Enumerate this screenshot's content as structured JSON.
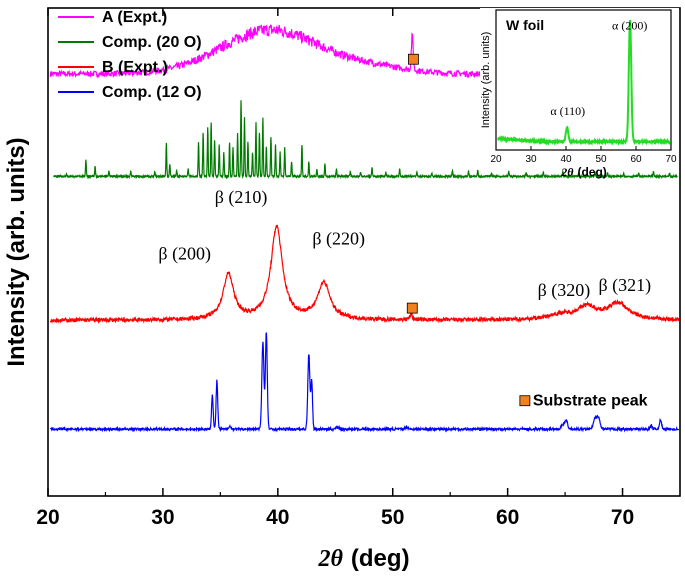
{
  "chart_data": [
    {
      "type": "line",
      "title": "",
      "xlabel_italic": "2θ",
      "xlabel_unit": "(deg)",
      "ylabel": "Intensity (arb. units)",
      "xlim": [
        20,
        75
      ],
      "x_ticks": [
        "20",
        "30",
        "40",
        "50",
        "60",
        "70"
      ],
      "x_tick_values": [
        20,
        30,
        40,
        50,
        60,
        70
      ],
      "y_ticks_labeled": false,
      "legend": {
        "position": "top-left"
      },
      "series": [
        {
          "name": "A (Expt.)",
          "color": "#ff00ff",
          "kind": "broad",
          "baseline": 0.865,
          "amorphous_center": 39.4,
          "amorphous_width": 4.3,
          "amorphous_height": 0.09,
          "noise": 0.006,
          "peaks": [
            {
              "x": 51.7,
              "h": 0.07,
              "w": 0.08
            }
          ]
        },
        {
          "name": "Comp. (20 O)",
          "color": "#007a00",
          "kind": "sticks",
          "baseline": 0.655,
          "peaks": [
            {
              "x": 21.6,
              "h": 0.005
            },
            {
              "x": 23.3,
              "h": 0.035
            },
            {
              "x": 24.1,
              "h": 0.02
            },
            {
              "x": 25.3,
              "h": 0.01
            },
            {
              "x": 27.2,
              "h": 0.01
            },
            {
              "x": 29.3,
              "h": 0.01
            },
            {
              "x": 30.3,
              "h": 0.068
            },
            {
              "x": 30.6,
              "h": 0.025
            },
            {
              "x": 31.2,
              "h": 0.012
            },
            {
              "x": 32.2,
              "h": 0.015
            },
            {
              "x": 33.1,
              "h": 0.07
            },
            {
              "x": 33.5,
              "h": 0.09
            },
            {
              "x": 33.9,
              "h": 0.1
            },
            {
              "x": 34.2,
              "h": 0.11
            },
            {
              "x": 34.5,
              "h": 0.075
            },
            {
              "x": 34.9,
              "h": 0.065
            },
            {
              "x": 35.3,
              "h": 0.05
            },
            {
              "x": 35.8,
              "h": 0.07
            },
            {
              "x": 36.1,
              "h": 0.06
            },
            {
              "x": 36.5,
              "h": 0.09
            },
            {
              "x": 36.8,
              "h": 0.155
            },
            {
              "x": 37.1,
              "h": 0.12
            },
            {
              "x": 37.4,
              "h": 0.07
            },
            {
              "x": 37.8,
              "h": 0.05
            },
            {
              "x": 38.1,
              "h": 0.11
            },
            {
              "x": 38.4,
              "h": 0.09
            },
            {
              "x": 38.7,
              "h": 0.12
            },
            {
              "x": 39.0,
              "h": 0.06
            },
            {
              "x": 39.4,
              "h": 0.08
            },
            {
              "x": 39.8,
              "h": 0.065
            },
            {
              "x": 40.2,
              "h": 0.05
            },
            {
              "x": 40.6,
              "h": 0.06
            },
            {
              "x": 41.2,
              "h": 0.03
            },
            {
              "x": 42.1,
              "h": 0.065
            },
            {
              "x": 42.7,
              "h": 0.03
            },
            {
              "x": 43.4,
              "h": 0.015
            },
            {
              "x": 44.1,
              "h": 0.025
            },
            {
              "x": 45.1,
              "h": 0.015
            },
            {
              "x": 46.3,
              "h": 0.01
            },
            {
              "x": 47.2,
              "h": 0.008
            },
            {
              "x": 48.2,
              "h": 0.018
            },
            {
              "x": 49.4,
              "h": 0.008
            },
            {
              "x": 50.6,
              "h": 0.015
            },
            {
              "x": 52.1,
              "h": 0.01
            },
            {
              "x": 53.4,
              "h": 0.006
            },
            {
              "x": 55.2,
              "h": 0.012
            },
            {
              "x": 56.6,
              "h": 0.01
            },
            {
              "x": 57.4,
              "h": 0.012
            },
            {
              "x": 58.6,
              "h": 0.006
            },
            {
              "x": 60.1,
              "h": 0.01
            },
            {
              "x": 61.6,
              "h": 0.007
            },
            {
              "x": 63.1,
              "h": 0.008
            },
            {
              "x": 64.8,
              "h": 0.01
            },
            {
              "x": 66.2,
              "h": 0.007
            },
            {
              "x": 67.6,
              "h": 0.009
            },
            {
              "x": 68.7,
              "h": 0.008
            },
            {
              "x": 70.1,
              "h": 0.006
            },
            {
              "x": 71.4,
              "h": 0.007
            },
            {
              "x": 72.7,
              "h": 0.01
            },
            {
              "x": 74.1,
              "h": 0.006
            }
          ]
        },
        {
          "name": "B (Expt.)",
          "color": "#ff0000",
          "kind": "broadpeaks",
          "baseline": 0.36,
          "noise": 0.004,
          "peaks": [
            {
              "x": 35.7,
              "h": 0.093,
              "w": 0.55
            },
            {
              "x": 39.9,
              "h": 0.19,
              "w": 0.6
            },
            {
              "x": 44.0,
              "h": 0.075,
              "w": 0.65
            },
            {
              "x": 51.6,
              "h": 0.012,
              "w": 0.12
            },
            {
              "x": 64.6,
              "h": 0.01,
              "w": 1.3
            },
            {
              "x": 66.9,
              "h": 0.025,
              "w": 1.0
            },
            {
              "x": 69.6,
              "h": 0.033,
              "w": 1.1
            }
          ]
        },
        {
          "name": "Comp. (12 O)",
          "color": "#0000ff",
          "kind": "sharp",
          "baseline": 0.137,
          "noise": 0.0025,
          "peaks": [
            {
              "x": 34.3,
              "h": 0.07,
              "w": 0.07
            },
            {
              "x": 34.7,
              "h": 0.1,
              "w": 0.07
            },
            {
              "x": 35.8,
              "h": 0.006,
              "w": 0.1
            },
            {
              "x": 38.7,
              "h": 0.18,
              "w": 0.09
            },
            {
              "x": 39.0,
              "h": 0.2,
              "w": 0.08
            },
            {
              "x": 42.7,
              "h": 0.155,
              "w": 0.09
            },
            {
              "x": 42.95,
              "h": 0.1,
              "w": 0.07
            },
            {
              "x": 45.2,
              "h": 0.004,
              "w": 0.15
            },
            {
              "x": 51.2,
              "h": 0.004,
              "w": 0.15
            },
            {
              "x": 64.8,
              "h": 0.01,
              "w": 0.12
            },
            {
              "x": 65.1,
              "h": 0.017,
              "w": 0.12
            },
            {
              "x": 67.6,
              "h": 0.02,
              "w": 0.14
            },
            {
              "x": 67.9,
              "h": 0.023,
              "w": 0.14
            },
            {
              "x": 72.5,
              "h": 0.007,
              "w": 0.1
            },
            {
              "x": 73.3,
              "h": 0.018,
              "w": 0.1
            }
          ]
        }
      ],
      "annotations": [
        {
          "text": "β (200)",
          "x": 31.9,
          "y": 0.485
        },
        {
          "text": "β (210)",
          "x": 36.8,
          "y": 0.6
        },
        {
          "text": "β (220)",
          "x": 45.3,
          "y": 0.515
        },
        {
          "text": "β (320)",
          "x": 64.9,
          "y": 0.41
        },
        {
          "text": "β (321)",
          "x": 70.2,
          "y": 0.42
        }
      ],
      "substrate_markers": [
        {
          "x": 51.8,
          "y": 0.895
        },
        {
          "x": 51.7,
          "y": 0.385
        }
      ],
      "substrate_legend": {
        "label": "Substrate peak",
        "x": 61.5,
        "y": 0.185
      },
      "marker_color": "#f0811e"
    },
    {
      "type": "line",
      "title": "W foil",
      "xlabel_italic": "2θ",
      "xlabel_unit": "(deg)",
      "ylabel": "Intensity (arb. units)",
      "xlim": [
        20,
        70
      ],
      "x_ticks": [
        "20",
        "30",
        "40",
        "50",
        "60",
        "70"
      ],
      "x_tick_values": [
        20,
        30,
        40,
        50,
        60,
        70
      ],
      "series": [
        {
          "name": "W foil",
          "color": "#22dd22",
          "baseline": 0.06,
          "noise": 0.004,
          "peaks": [
            {
              "x": 40.3,
              "h": 0.1,
              "w": 0.35
            },
            {
              "x": 58.3,
              "h": 0.87,
              "w": 0.35
            }
          ]
        }
      ],
      "annotations": [
        {
          "text": "α (110)",
          "x": 40.5,
          "y": 0.25
        },
        {
          "text": "α (200)",
          "x": 58.2,
          "y": 0.86
        }
      ]
    }
  ]
}
